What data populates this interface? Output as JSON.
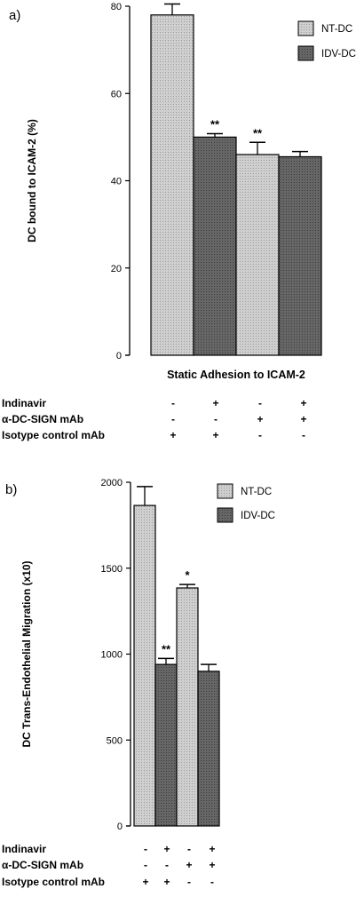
{
  "chart_data": [
    {
      "panel_label": "a)",
      "type": "bar",
      "ylabel": "DC bound to ICAM-2 (%)",
      "xlabel": "Static Adhesion to ICAM-2",
      "ylim": [
        0,
        80
      ],
      "yticks": [
        "0",
        "20",
        "40",
        "60",
        "80"
      ],
      "ytick_values": [
        0,
        20,
        40,
        60,
        80
      ],
      "legend": [
        {
          "name": "NT-DC",
          "color": "#c4c4c4"
        },
        {
          "name": "IDV-DC",
          "color": "#5c5c5c"
        }
      ],
      "legend_position": "top-right",
      "bars": [
        {
          "series": "NT-DC",
          "value": 78,
          "error": 2.5,
          "annotation": ""
        },
        {
          "series": "IDV-DC",
          "value": 50,
          "error": 0.8,
          "annotation": "**"
        },
        {
          "series": "NT-DC",
          "value": 46,
          "error": 2.8,
          "annotation": "**"
        },
        {
          "series": "IDV-DC",
          "value": 45.5,
          "error": 1.2,
          "annotation": ""
        }
      ],
      "conditions": [
        {
          "label": "Indinavir",
          "signs": [
            "-",
            "+",
            "-",
            "+"
          ]
        },
        {
          "label": "α-DC-SIGN mAb",
          "signs": [
            "-",
            "-",
            "+",
            "+"
          ]
        },
        {
          "label": "Isotype control mAb",
          "signs": [
            "+",
            "+",
            "-",
            "-"
          ]
        }
      ]
    },
    {
      "panel_label": "b)",
      "type": "bar",
      "ylabel": "DC Trans-Endothelial Migration (x10)",
      "xlabel": "",
      "ylim": [
        0,
        2000
      ],
      "yticks": [
        "0",
        "500",
        "1000",
        "1500",
        "2000"
      ],
      "ytick_values": [
        0,
        500,
        1000,
        1500,
        2000
      ],
      "legend": [
        {
          "name": "NT-DC",
          "color": "#c4c4c4"
        },
        {
          "name": "IDV-DC",
          "color": "#5c5c5c"
        }
      ],
      "legend_position": "top-right",
      "bars": [
        {
          "series": "NT-DC",
          "value": 1865,
          "error": 110,
          "annotation": ""
        },
        {
          "series": "IDV-DC",
          "value": 940,
          "error": 35,
          "annotation": "**"
        },
        {
          "series": "NT-DC",
          "value": 1385,
          "error": 20,
          "annotation": "*"
        },
        {
          "series": "IDV-DC",
          "value": 900,
          "error": 40,
          "annotation": ""
        }
      ],
      "conditions": [
        {
          "label": "Indinavir",
          "signs": [
            "-",
            "+",
            "-",
            "+"
          ]
        },
        {
          "label": "α-DC-SIGN mAb",
          "signs": [
            "-",
            "-",
            "+",
            "+"
          ]
        },
        {
          "label": "Isotype control mAb",
          "signs": [
            "+",
            "+",
            "-",
            "-"
          ]
        }
      ]
    }
  ]
}
